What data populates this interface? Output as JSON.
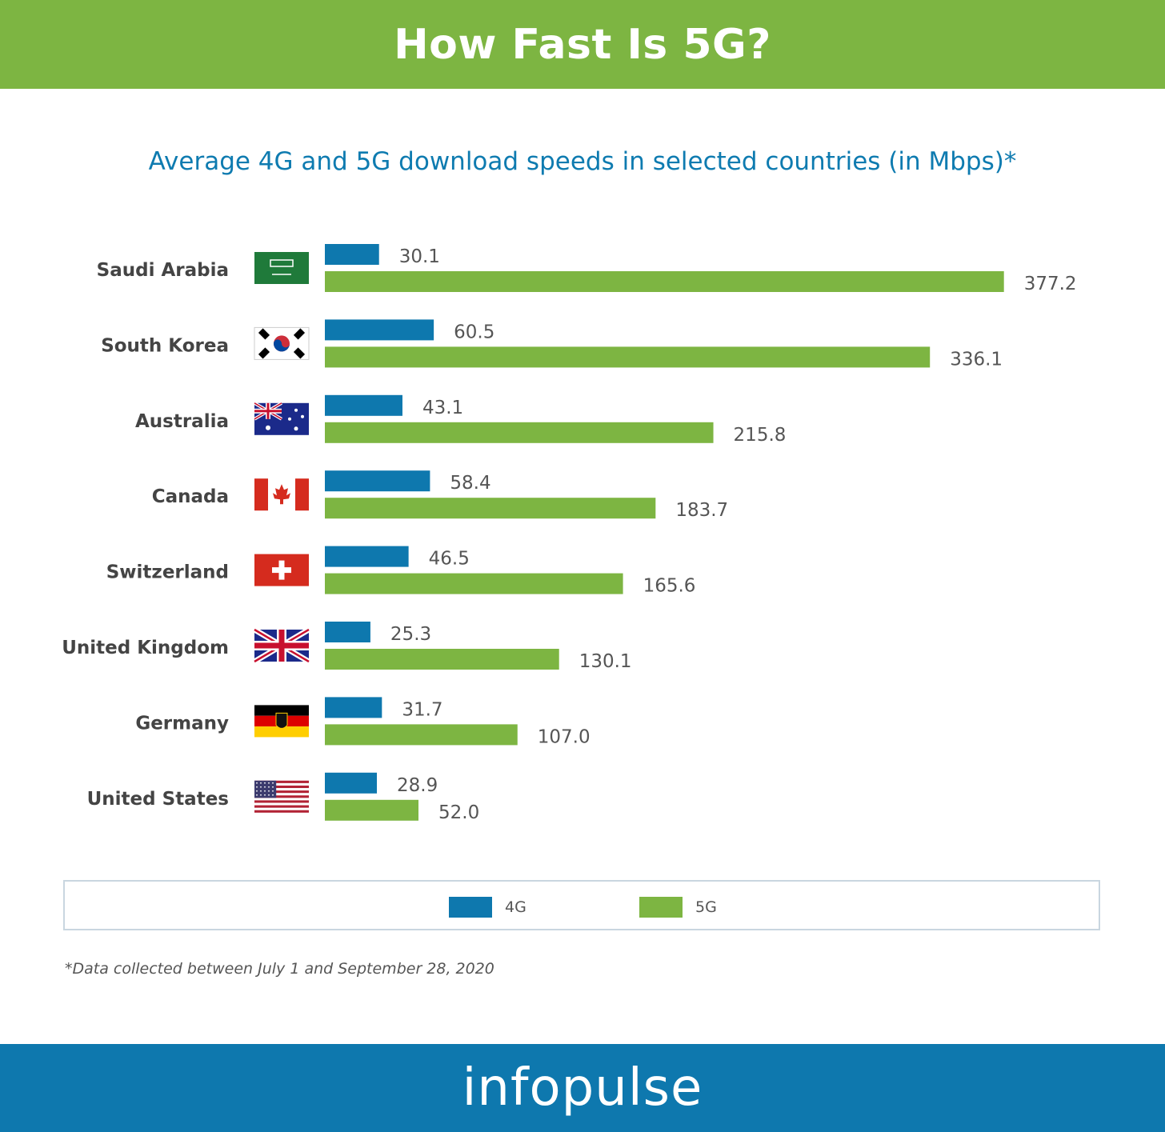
{
  "header": {
    "title": "How Fast Is 5G?"
  },
  "colors": {
    "header_bg": "#7db542",
    "footer_bg": "#0e78ae",
    "series_4g": "#0e78ae",
    "series_5g": "#7db542",
    "subtitle": "#0e7bb0"
  },
  "legend": {
    "items": [
      {
        "label": "4G",
        "color": "#0e78ae"
      },
      {
        "label": "5G",
        "color": "#7db542"
      }
    ]
  },
  "footnote": "*Data collected between July 1 and September 28, 2020",
  "footer": {
    "logo_text": "infopulse"
  },
  "chart_data": {
    "type": "bar",
    "orientation": "horizontal",
    "title": "Average 4G and 5G download speeds in selected countries (in Mbps)*",
    "xlabel": "",
    "ylabel": "",
    "xlim": [
      0,
      400
    ],
    "grid": false,
    "legend_position": "bottom",
    "categories": [
      "Saudi Arabia",
      "South Korea",
      "Australia",
      "Canada",
      "Switzerland",
      "United Kingdom",
      "Germany",
      "United States"
    ],
    "flag_icons": [
      "saudi-arabia-flag-icon",
      "south-korea-flag-icon",
      "australia-flag-icon",
      "canada-flag-icon",
      "switzerland-flag-icon",
      "united-kingdom-flag-icon",
      "germany-flag-icon",
      "united-states-flag-icon"
    ],
    "series": [
      {
        "name": "4G",
        "color": "#0e78ae",
        "values": [
          30.1,
          60.5,
          43.1,
          58.4,
          46.5,
          25.3,
          31.7,
          28.9
        ],
        "labels": [
          "30.1",
          "60.5",
          "43.1",
          "58.4",
          "46.5",
          "25.3",
          "31.7",
          "28.9"
        ]
      },
      {
        "name": "5G",
        "color": "#7db542",
        "values": [
          377.2,
          336.1,
          215.8,
          183.7,
          165.6,
          130.1,
          107.0,
          52.0
        ],
        "labels": [
          "377.2",
          "336.1",
          "215.8",
          "183.7",
          "165.6",
          "130.1",
          "107.0",
          "52.0"
        ]
      }
    ]
  }
}
